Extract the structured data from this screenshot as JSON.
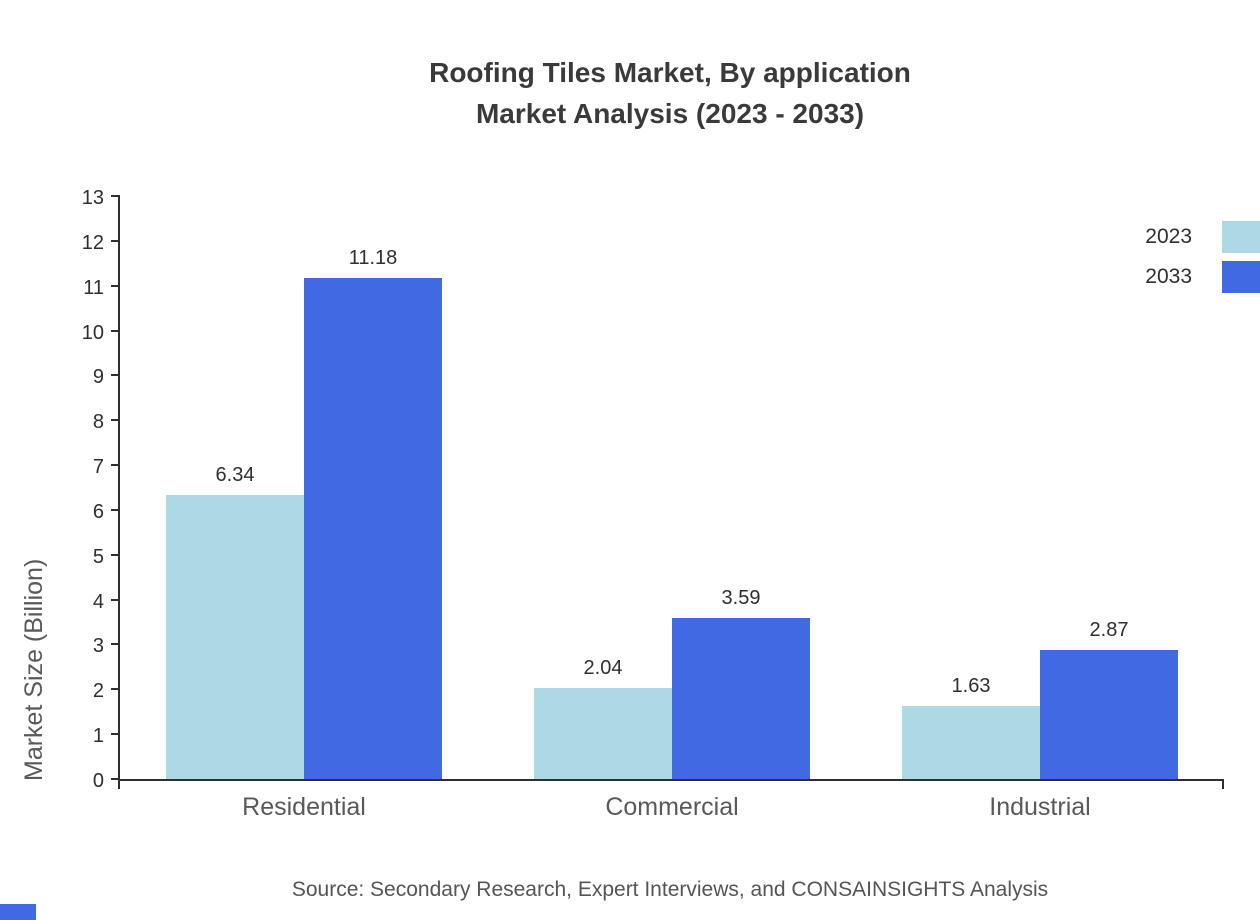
{
  "title": {
    "line1": "Roofing Tiles Market, By application",
    "line2": "Market Analysis (2023 - 2033)"
  },
  "source": "Source: Secondary Research, Expert Interviews, and CONSAINSIGHTS Analysis",
  "accent_color": "#4169e1",
  "chart_data": {
    "type": "bar",
    "title": "Roofing Tiles Market, By application — Market Analysis (2023 - 2033)",
    "categories": [
      "Residential",
      "Commercial",
      "Industrial"
    ],
    "series": [
      {
        "name": "2023",
        "color": "#add8e6",
        "values": [
          6.34,
          2.04,
          1.63
        ]
      },
      {
        "name": "2033",
        "color": "#4169e1",
        "values": [
          11.18,
          3.59,
          2.87
        ]
      }
    ],
    "xlabel": "",
    "ylabel": "Market Size (Billion)",
    "ylim": [
      0,
      13
    ],
    "ytick_step": 1,
    "grid": false,
    "legend_position": "top-right",
    "value_labels": true,
    "value_label_decimals": 2
  }
}
